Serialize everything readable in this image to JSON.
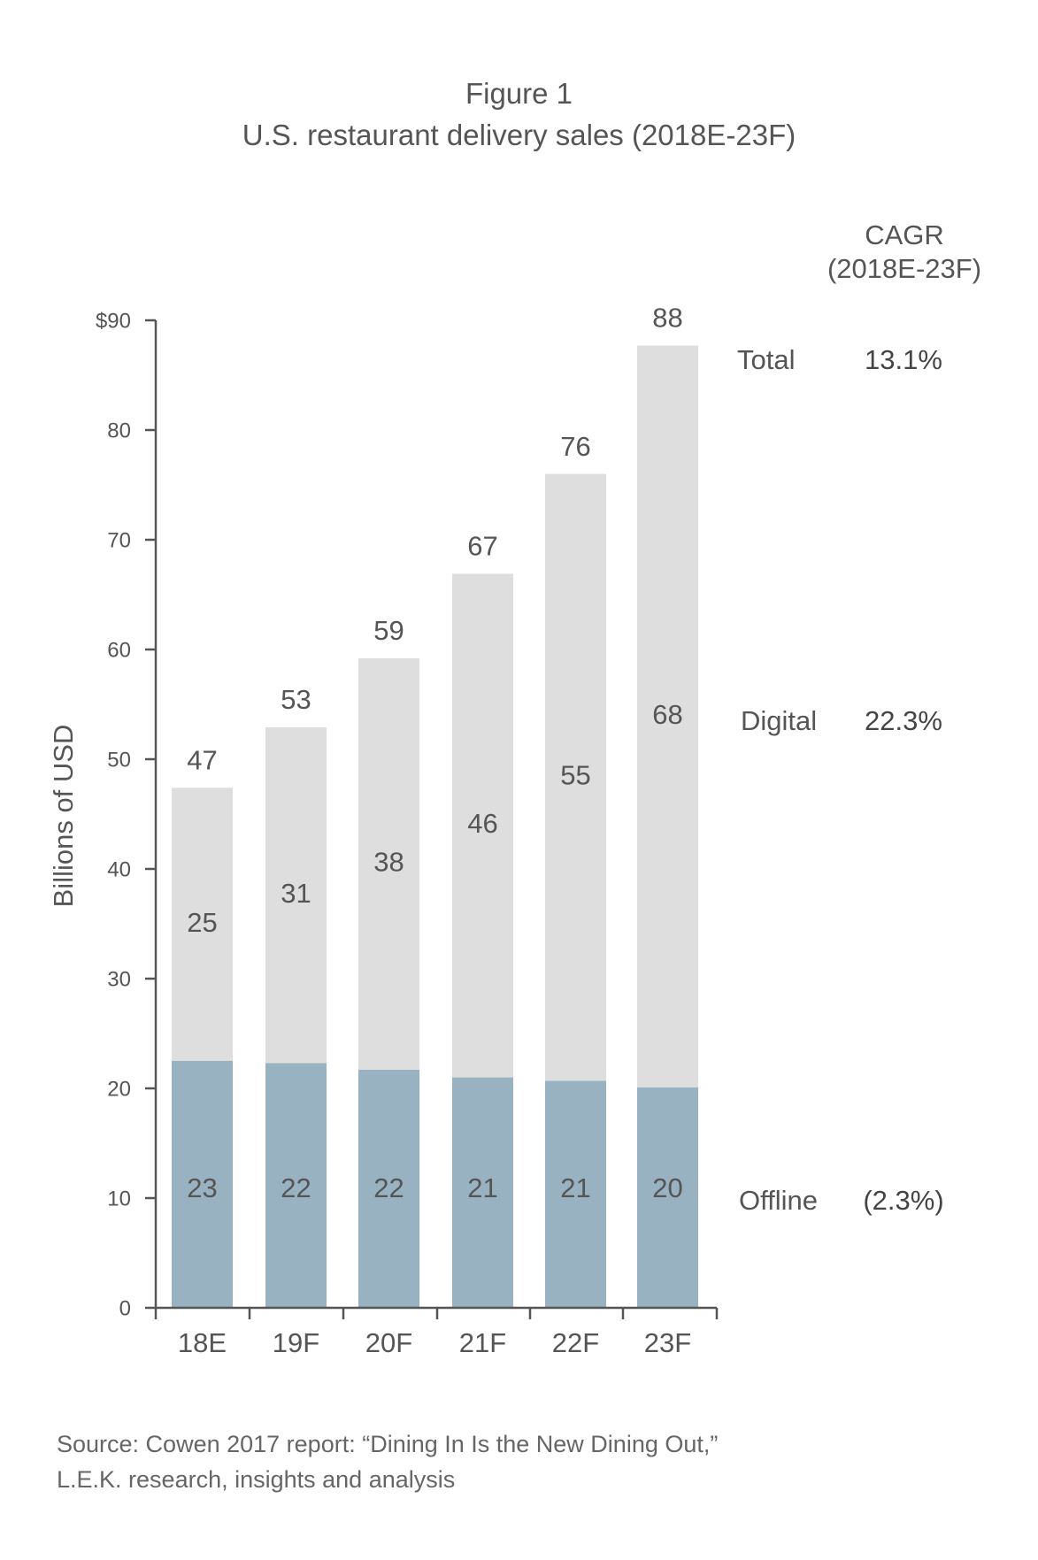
{
  "figure_label": "Figure 1",
  "chart_data": {
    "type": "bar",
    "stacked": true,
    "title": "U.S. restaurant delivery sales (2018E-23F)",
    "ylabel": "Billions of USD",
    "xlabel": "",
    "ylim": [
      0,
      90
    ],
    "yticks": [
      {
        "value": 0,
        "label": "0"
      },
      {
        "value": 10,
        "label": "10"
      },
      {
        "value": 20,
        "label": "20"
      },
      {
        "value": 30,
        "label": "30"
      },
      {
        "value": 40,
        "label": "40"
      },
      {
        "value": 50,
        "label": "50"
      },
      {
        "value": 60,
        "label": "60"
      },
      {
        "value": 70,
        "label": "70"
      },
      {
        "value": 80,
        "label": "80"
      },
      {
        "value": 90,
        "label": "$90"
      }
    ],
    "categories": [
      "18E",
      "19F",
      "20F",
      "21F",
      "22F",
      "23F"
    ],
    "series": [
      {
        "name": "Offline",
        "bar_values": [
          22.5,
          22.3,
          21.7,
          21.0,
          20.7,
          20.1
        ],
        "labels": [
          "23",
          "22",
          "22",
          "21",
          "21",
          "20"
        ],
        "color": "#98b2c2"
      },
      {
        "name": "Digital",
        "bar_values": [
          24.9,
          30.6,
          37.5,
          45.9,
          55.3,
          67.6
        ],
        "labels": [
          "25",
          "31",
          "38",
          "46",
          "55",
          "68"
        ],
        "color": "#dedede"
      }
    ],
    "totals": [
      "47",
      "53",
      "59",
      "67",
      "76",
      "88"
    ],
    "grid": false,
    "cagr_header": [
      "CAGR",
      "(2018E-23F)"
    ],
    "cagr": [
      {
        "name": "Total",
        "value": "13.1%"
      },
      {
        "name": "Digital",
        "value": "22.3%"
      },
      {
        "name": "Offline",
        "value": "(2.3%)"
      }
    ]
  },
  "source_lines": [
    "Source: Cowen 2017 report: “Dining In Is the New Dining Out,”",
    "L.E.K. research, insights and analysis"
  ]
}
